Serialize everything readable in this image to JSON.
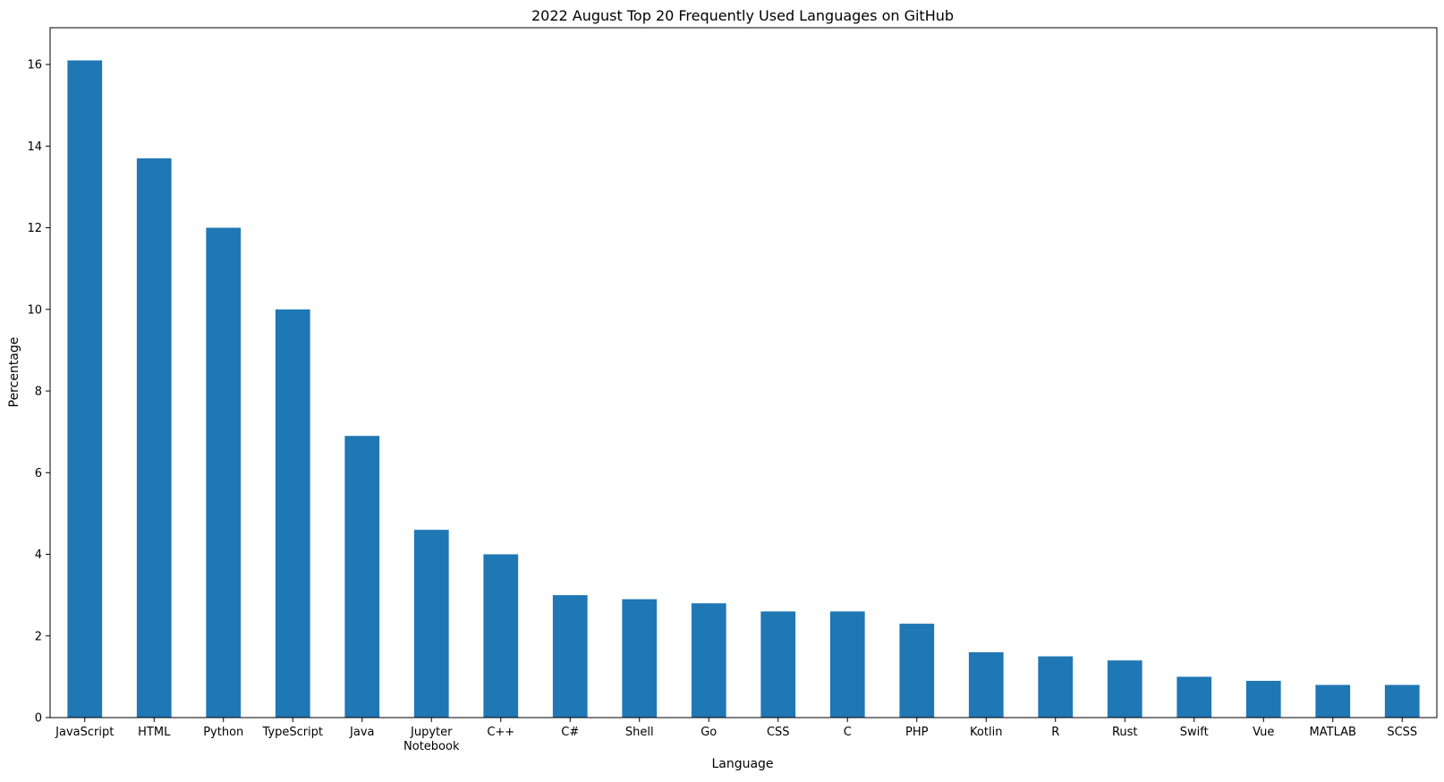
{
  "chart_data": {
    "type": "bar",
    "title": "2022 August Top 20 Frequently Used Languages on GitHub",
    "xlabel": "Language",
    "ylabel": "Percentage",
    "categories": [
      "JavaScript",
      "HTML",
      "Python",
      "TypeScript",
      "Java",
      "Jupyter Notebook",
      "C++",
      "C#",
      "Shell",
      "Go",
      "CSS",
      "C",
      "PHP",
      "Kotlin",
      "R",
      "Rust",
      "Swift",
      "Vue",
      "MATLAB",
      "SCSS"
    ],
    "values": [
      16.1,
      13.7,
      12.0,
      10.0,
      6.9,
      4.6,
      4.0,
      3.0,
      2.9,
      2.8,
      2.6,
      2.6,
      2.3,
      1.6,
      1.5,
      1.4,
      1.0,
      0.9,
      0.8,
      0.8
    ],
    "ylim": [
      0,
      16.9
    ],
    "yticks": [
      0,
      2,
      4,
      6,
      8,
      10,
      12,
      14,
      16
    ],
    "grid": false,
    "legend": "none",
    "bar_color": "#1f77b4"
  }
}
